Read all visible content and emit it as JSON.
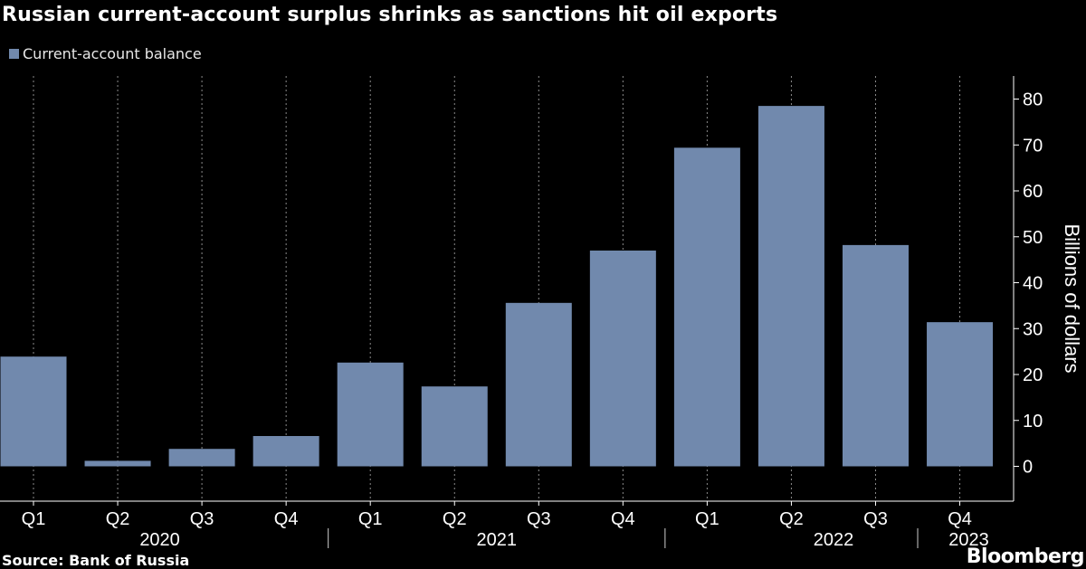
{
  "title": "Russian current-account surplus shrinks as sanctions hit oil exports",
  "legend": {
    "label": "Current-account balance",
    "color": "#7189ad"
  },
  "source": "Source: Bank of Russia",
  "brand": "Bloomberg",
  "chart_data": {
    "type": "bar",
    "title": "Russian current-account surplus shrinks as sanctions hit oil exports",
    "ylabel": "Billions of dollars",
    "xlabel": "",
    "ylim": [
      -7,
      86
    ],
    "yticks": [
      0,
      10,
      20,
      30,
      40,
      50,
      60,
      70,
      80
    ],
    "y_axis_position": "right",
    "grid": "vertical-dotted",
    "legend_position": "top-left",
    "categories": [
      "Q1",
      "Q2",
      "Q3",
      "Q4",
      "Q1",
      "Q2",
      "Q3",
      "Q4",
      "Q1",
      "Q2",
      "Q3",
      "Q4"
    ],
    "year_groups": [
      {
        "label": "2020",
        "start": 0,
        "end": 3
      },
      {
        "label": "2021",
        "start": 4,
        "end": 7
      },
      {
        "label": "2022",
        "start": 8,
        "end": 11
      },
      {
        "label": "2023",
        "start": 11,
        "end": 11
      }
    ],
    "series": [
      {
        "name": "Current-account balance",
        "color": "#7189ad",
        "values": [
          23.9,
          1.2,
          3.8,
          6.6,
          22.6,
          17.4,
          35.6,
          47.0,
          69.4,
          78.5,
          48.2,
          31.4
        ]
      }
    ]
  }
}
